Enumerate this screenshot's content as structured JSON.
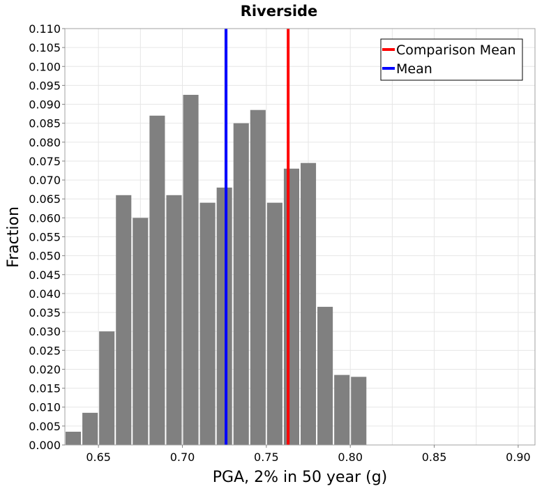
{
  "chart_data": {
    "type": "bar",
    "title": "Riverside",
    "xlabel": "PGA, 2% in 50 year (g)",
    "ylabel": "Fraction",
    "xlim": [
      0.63,
      0.91
    ],
    "ylim": [
      0.0,
      0.11
    ],
    "grid": true,
    "bin_width": 0.01,
    "bins": [
      {
        "x": 0.635,
        "value": 0.0035
      },
      {
        "x": 0.645,
        "value": 0.0085
      },
      {
        "x": 0.655,
        "value": 0.03
      },
      {
        "x": 0.665,
        "value": 0.066
      },
      {
        "x": 0.675,
        "value": 0.06
      },
      {
        "x": 0.685,
        "value": 0.087
      },
      {
        "x": 0.695,
        "value": 0.066
      },
      {
        "x": 0.705,
        "value": 0.0925
      },
      {
        "x": 0.715,
        "value": 0.064
      },
      {
        "x": 0.725,
        "value": 0.068
      },
      {
        "x": 0.735,
        "value": 0.085
      },
      {
        "x": 0.745,
        "value": 0.0885
      },
      {
        "x": 0.755,
        "value": 0.064
      },
      {
        "x": 0.765,
        "value": 0.073
      },
      {
        "x": 0.775,
        "value": 0.0745
      },
      {
        "x": 0.785,
        "value": 0.0365
      },
      {
        "x": 0.795,
        "value": 0.0185
      },
      {
        "x": 0.805,
        "value": 0.018
      }
    ],
    "bar_color": "#808080",
    "x_ticks": [
      "0.65",
      "0.70",
      "0.75",
      "0.80",
      "0.85",
      "0.90"
    ],
    "y_ticks": [
      "0.000",
      "0.005",
      "0.010",
      "0.015",
      "0.020",
      "0.025",
      "0.030",
      "0.035",
      "0.040",
      "0.045",
      "0.050",
      "0.055",
      "0.060",
      "0.065",
      "0.070",
      "0.075",
      "0.080",
      "0.085",
      "0.090",
      "0.095",
      "0.100",
      "0.105",
      "0.110"
    ],
    "vlines": [
      {
        "name": "Comparison Mean",
        "x": 0.763,
        "color": "#ff0000"
      },
      {
        "name": "Mean",
        "x": 0.726,
        "color": "#0000ff"
      }
    ],
    "legend": {
      "position": "top-right",
      "entries": [
        {
          "label": "Comparison Mean",
          "color": "#ff0000"
        },
        {
          "label": "Mean",
          "color": "#0000ff"
        }
      ]
    }
  }
}
